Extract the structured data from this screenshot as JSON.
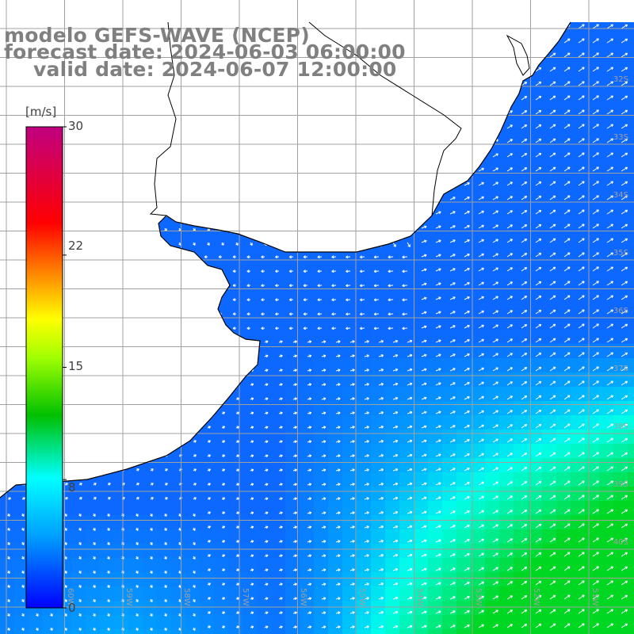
{
  "title": {
    "line1": "modelo GEFS-WAVE (NCEP)",
    "line2": "forecast date: 2024-06-03 06:00:00",
    "line3": "valid date: 2024-06-07 12:00:00"
  },
  "colorbar": {
    "unit": "[m/s]",
    "ticks": [
      "30",
      "22",
      "15",
      "8",
      "0"
    ],
    "tick_values": [
      30,
      22,
      15,
      8,
      0
    ],
    "min": 0,
    "max": 30,
    "colors": [
      "#0000ff",
      "#00c0ff",
      "#00ffff",
      "#00c000",
      "#ffff00",
      "#ff8000",
      "#ff0000",
      "#c00080"
    ]
  },
  "map": {
    "lat_labels": [
      "32S",
      "33S",
      "34S",
      "35S",
      "36S",
      "37S",
      "38S",
      "39S",
      "40S"
    ],
    "lon_labels": [
      "60W",
      "59W",
      "58W",
      "57W",
      "56W",
      "55W",
      "54W",
      "53W",
      "52W",
      "51W"
    ],
    "ocean_color": "#2050ff",
    "land_color": "#ffffff",
    "grid_color": "#a0a0a0",
    "coast_color": "#000000"
  }
}
